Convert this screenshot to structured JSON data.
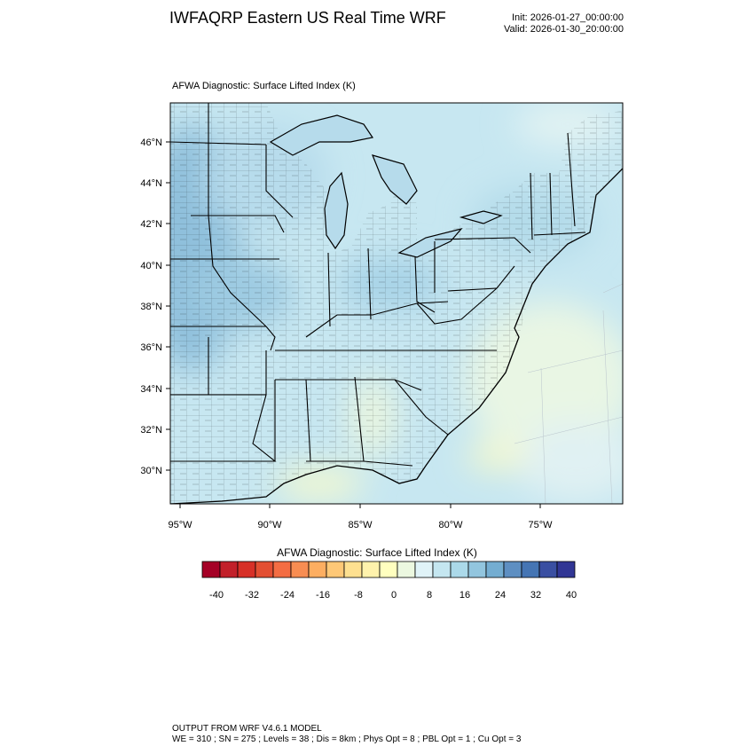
{
  "header": {
    "title": "IWFAQRP Eastern US Real Time WRF",
    "init": "Init: 2026-01-27_00:00:00",
    "valid": "Valid: 2026-01-30_20:00:00"
  },
  "field": {
    "label": "AFWA Diagnostic: Surface Lifted Index   (K)"
  },
  "axes": {
    "lat_labels": [
      "46°N",
      "44°N",
      "42°N",
      "40°N",
      "38°N",
      "36°N",
      "34°N",
      "32°N",
      "30°N"
    ],
    "lon_labels": [
      "95°W",
      "90°W",
      "85°W",
      "80°W",
      "75°W"
    ]
  },
  "colorbar": {
    "title": "AFWA Diagnostic: Surface Lifted Index  (K)",
    "tick_labels": [
      "-40",
      "-32",
      "-24",
      "-16",
      "-8",
      "0",
      "8",
      "16",
      "24",
      "32",
      "40"
    ],
    "colors": [
      "#a50026",
      "#c2202a",
      "#d73027",
      "#e34f32",
      "#f46d43",
      "#f88d52",
      "#fdae61",
      "#fec877",
      "#fee090",
      "#fff2ac",
      "#ffffbf",
      "#ecf8e0",
      "#e0f3f8",
      "#c4e6f0",
      "#abd9e9",
      "#92c5de",
      "#74add1",
      "#5e8fc2",
      "#4575b4",
      "#3a4fa2",
      "#313695"
    ]
  },
  "footer": {
    "line1": "OUTPUT FROM WRF V4.6.1 MODEL",
    "line2": "WE = 310 ; SN = 275 ; Levels = 38 ; Dis = 8km ; Phys Opt = 8 ; PBL Opt = 1 ; Cu Opt = 3"
  }
}
